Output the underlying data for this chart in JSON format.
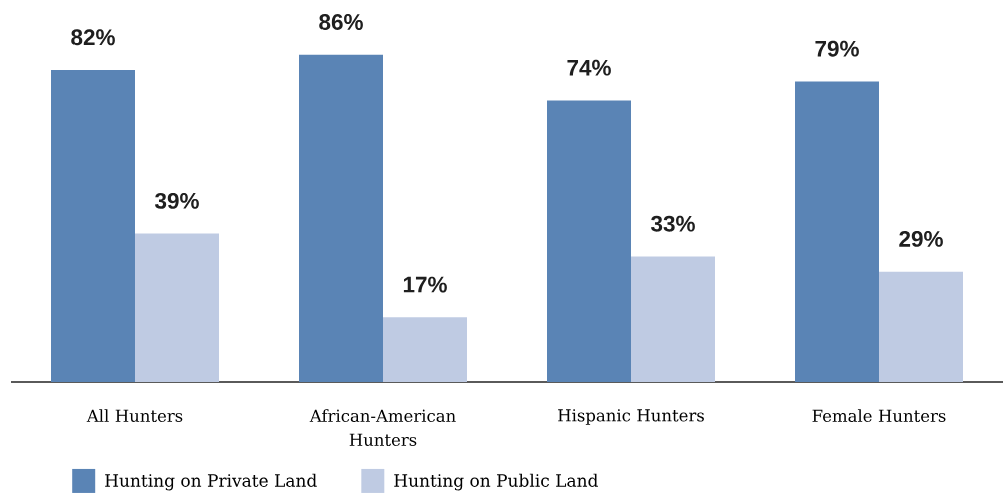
{
  "chart_data": {
    "type": "bar",
    "categories": [
      "All Hunters",
      "African-American Hunters",
      "Hispanic Hunters",
      "Female Hunters"
    ],
    "series": [
      {
        "name": "Hunting on Private Land",
        "color": "#5a84b5",
        "values": [
          82,
          86,
          74,
          79
        ],
        "value_labels": [
          "82%",
          "86%",
          "74%",
          "79%"
        ]
      },
      {
        "name": "Hunting on Public Land",
        "color": "#bfcbe3",
        "values": [
          39,
          17,
          33,
          29
        ],
        "value_labels": [
          "39%",
          "17%",
          "33%",
          "29%"
        ]
      }
    ],
    "legend": "bottom"
  }
}
